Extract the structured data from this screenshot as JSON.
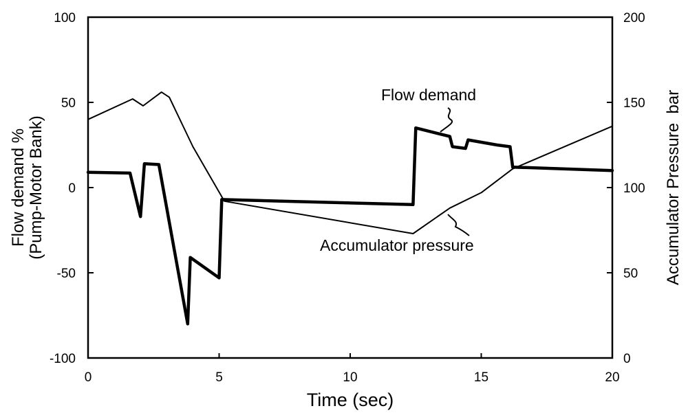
{
  "chart_data": {
    "type": "line",
    "title": "",
    "xlabel": "Time (sec)",
    "ylabel_left": [
      "Flow demand %",
      "(Pump-Motor Bank)"
    ],
    "ylabel_right": "Accumulator Pressure  bar",
    "xlim": [
      0,
      20
    ],
    "ylim_left": [
      -100,
      100
    ],
    "ylim_right": [
      0,
      200
    ],
    "x_ticks": [
      "0",
      "5",
      "10",
      "15",
      "20"
    ],
    "y_left_ticks": [
      "-100",
      "-50",
      "0",
      "50",
      "100"
    ],
    "y_right_ticks": [
      "0",
      "50",
      "100",
      "150",
      "200"
    ],
    "grid": false,
    "legend": "none",
    "series": [
      {
        "name": "Flow demand",
        "axis": "left",
        "color": "#000000",
        "points": [
          [
            0,
            9
          ],
          [
            1.6,
            8.5
          ],
          [
            2.0,
            -17
          ],
          [
            2.15,
            14
          ],
          [
            2.7,
            13.5
          ],
          [
            3.8,
            -80
          ],
          [
            3.9,
            -41
          ],
          [
            5.0,
            -53
          ],
          [
            5.1,
            -7
          ],
          [
            12.4,
            -10
          ],
          [
            12.5,
            35
          ],
          [
            13.8,
            30
          ],
          [
            13.9,
            24
          ],
          [
            14.4,
            23
          ],
          [
            14.5,
            28
          ],
          [
            15.6,
            25
          ],
          [
            16.1,
            24
          ],
          [
            16.2,
            12
          ],
          [
            20.0,
            10
          ]
        ]
      },
      {
        "name": "Accumulator pressure",
        "axis": "right",
        "color": "#000000",
        "points": [
          [
            0,
            140
          ],
          [
            1.7,
            152
          ],
          [
            2.1,
            148
          ],
          [
            2.8,
            156
          ],
          [
            3.1,
            153
          ],
          [
            4.0,
            124
          ],
          [
            5.2,
            92
          ],
          [
            12.4,
            73
          ],
          [
            13.8,
            88
          ],
          [
            15.0,
            97
          ],
          [
            16.2,
            111
          ],
          [
            20.0,
            136
          ]
        ]
      }
    ],
    "annotations": [
      {
        "text": "Flow demand",
        "series": "Flow demand"
      },
      {
        "text": "Accumulator pressure",
        "series": "Accumulator pressure"
      }
    ]
  }
}
